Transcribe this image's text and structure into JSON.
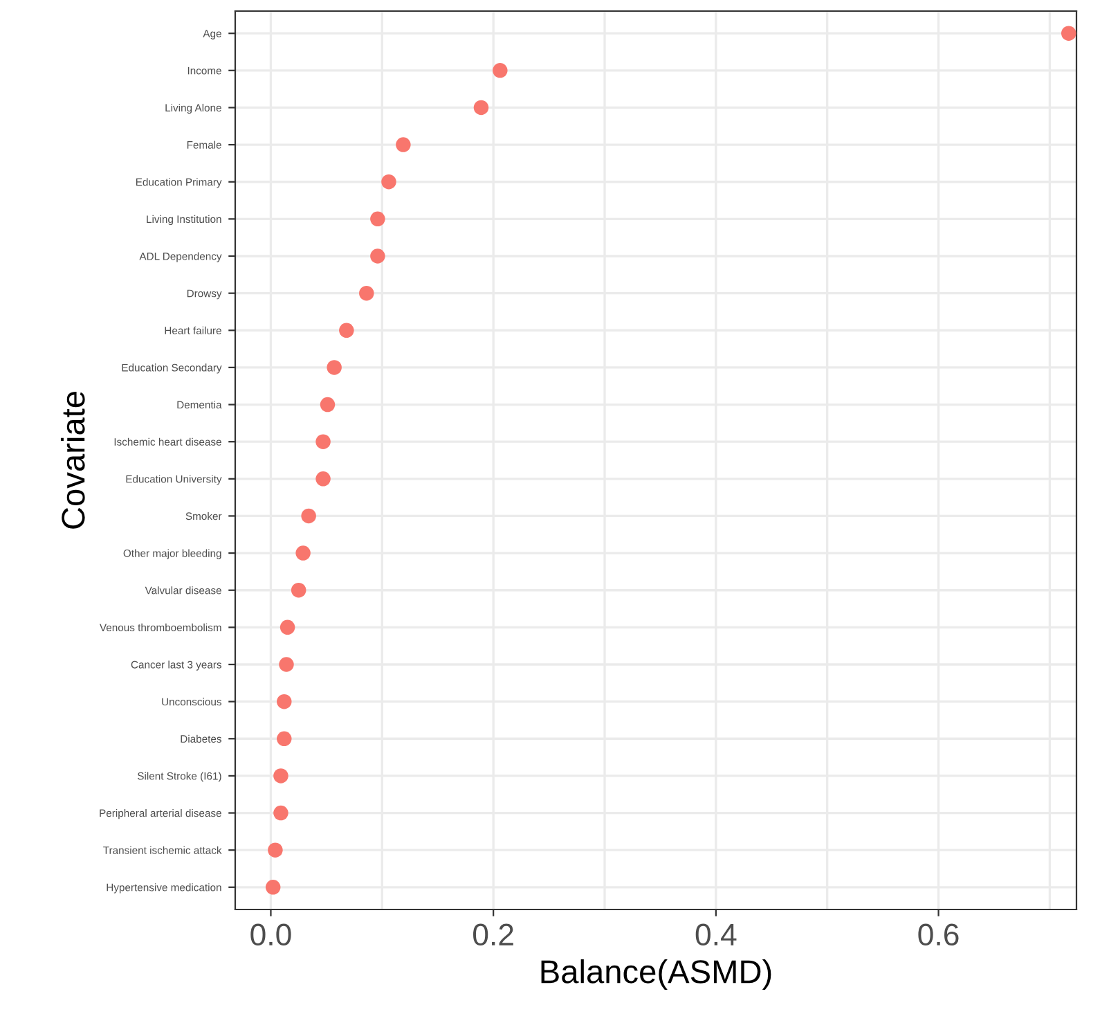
{
  "chart_data": {
    "type": "scatter",
    "orientation": "horizontal",
    "xlabel": "Balance(ASMD)",
    "ylabel": "Covariate",
    "categories": [
      "Age",
      "Income",
      "Living Alone",
      "Female",
      "Education Primary",
      "Living Institution",
      "ADL Dependency",
      "Drowsy",
      "Heart failure",
      "Education Secondary",
      "Dementia",
      "Ischemic heart disease",
      "Education University",
      "Smoker",
      "Other major bleeding",
      "Valvular disease",
      "Venous thromboembolism",
      "Cancer last 3 years",
      "Unconscious",
      "Diabetes",
      "Silent Stroke (I61)",
      "Peripheral arterial disease",
      "Transient ischemic attack",
      "Hypertensive medication"
    ],
    "series": [
      {
        "color": "#f8766d",
        "values": [
          0.717,
          0.206,
          0.189,
          0.119,
          0.106,
          0.096,
          0.096,
          0.086,
          0.068,
          0.057,
          0.051,
          0.047,
          0.047,
          0.034,
          0.029,
          0.025,
          0.015,
          0.014,
          0.012,
          0.012,
          0.009,
          0.009,
          0.004,
          0.002
        ]
      }
    ],
    "xlim": [
      -0.032,
      0.724
    ],
    "xticks": [
      {
        "value": 0.0,
        "label": "0.0"
      },
      {
        "value": 0.1,
        "label": null
      },
      {
        "value": 0.2,
        "label": "0.2"
      },
      {
        "value": 0.3,
        "label": null
      },
      {
        "value": 0.4,
        "label": "0.4"
      },
      {
        "value": 0.5,
        "label": null
      },
      {
        "value": 0.6,
        "label": "0.6"
      },
      {
        "value": 0.7,
        "label": null
      }
    ],
    "grid": true,
    "marker": "circle"
  }
}
